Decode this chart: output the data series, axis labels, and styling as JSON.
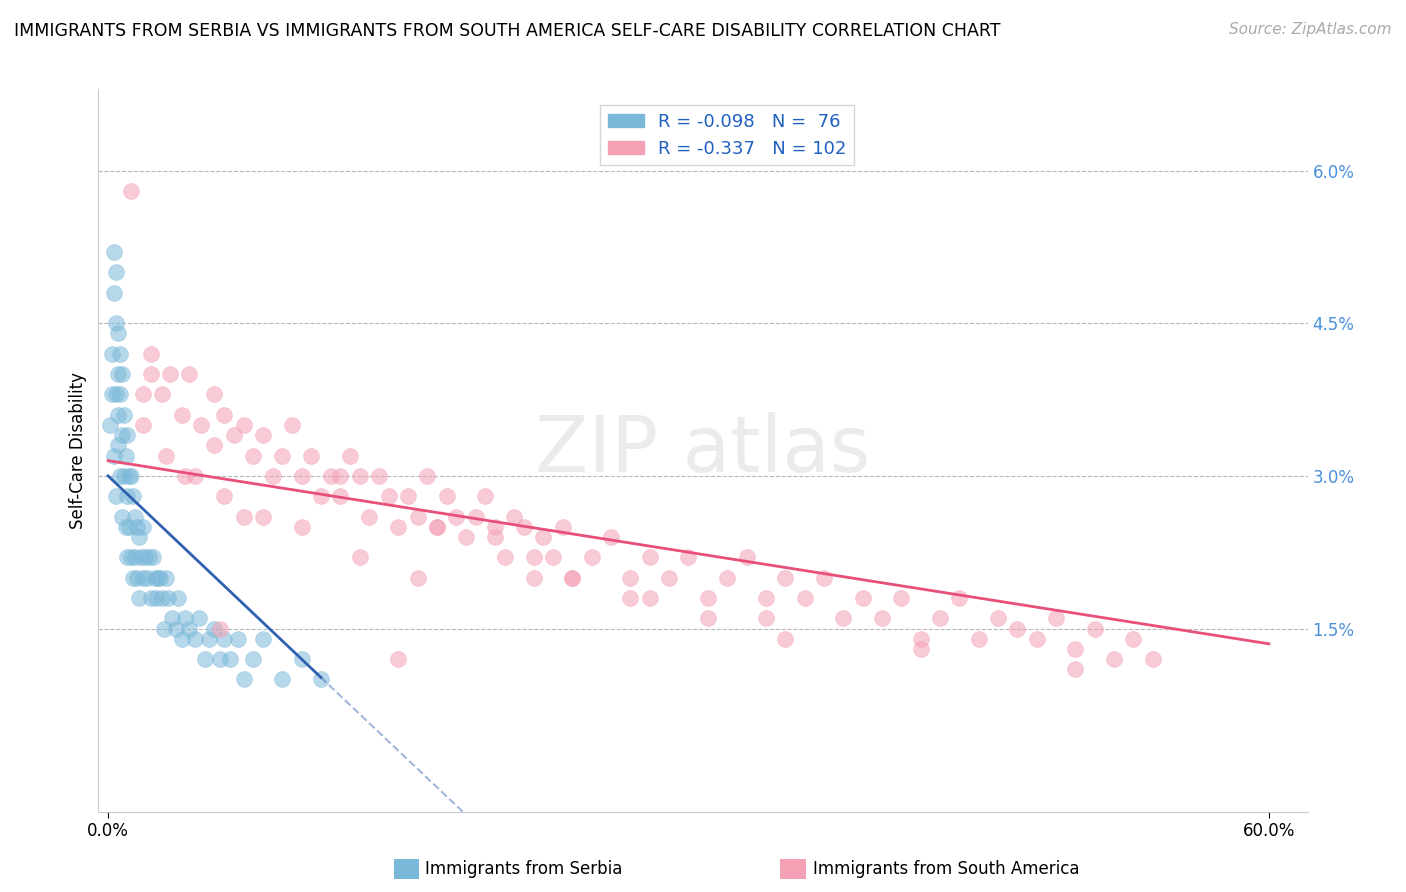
{
  "title": "IMMIGRANTS FROM SERBIA VS IMMIGRANTS FROM SOUTH AMERICA SELF-CARE DISABILITY CORRELATION CHART",
  "source": "Source: ZipAtlas.com",
  "ylabel": "Self-Care Disability",
  "blue_color": "#7ab8d9",
  "pink_color": "#f4a0b5",
  "blue_line_color": "#3060b0",
  "pink_line_color": "#e8507a",
  "serbia_R": -0.098,
  "serbia_N": 76,
  "sa_R": -0.337,
  "sa_N": 102,
  "serbia_x": [
    0.001,
    0.002,
    0.002,
    0.003,
    0.003,
    0.003,
    0.004,
    0.004,
    0.004,
    0.004,
    0.005,
    0.005,
    0.005,
    0.005,
    0.006,
    0.006,
    0.006,
    0.007,
    0.007,
    0.007,
    0.008,
    0.008,
    0.009,
    0.009,
    0.01,
    0.01,
    0.01,
    0.011,
    0.011,
    0.012,
    0.012,
    0.013,
    0.013,
    0.014,
    0.014,
    0.015,
    0.015,
    0.016,
    0.016,
    0.017,
    0.018,
    0.018,
    0.019,
    0.02,
    0.021,
    0.022,
    0.023,
    0.024,
    0.025,
    0.026,
    0.027,
    0.028,
    0.029,
    0.03,
    0.031,
    0.033,
    0.035,
    0.036,
    0.038,
    0.04,
    0.042,
    0.045,
    0.047,
    0.05,
    0.052,
    0.055,
    0.058,
    0.06,
    0.063,
    0.067,
    0.07,
    0.075,
    0.08,
    0.09,
    0.1,
    0.11
  ],
  "serbia_y": [
    0.035,
    0.042,
    0.038,
    0.048,
    0.052,
    0.032,
    0.045,
    0.038,
    0.05,
    0.028,
    0.04,
    0.033,
    0.044,
    0.036,
    0.042,
    0.03,
    0.038,
    0.034,
    0.04,
    0.026,
    0.03,
    0.036,
    0.025,
    0.032,
    0.028,
    0.034,
    0.022,
    0.03,
    0.025,
    0.03,
    0.022,
    0.028,
    0.02,
    0.026,
    0.022,
    0.025,
    0.02,
    0.024,
    0.018,
    0.022,
    0.025,
    0.02,
    0.022,
    0.02,
    0.022,
    0.018,
    0.022,
    0.02,
    0.018,
    0.02,
    0.02,
    0.018,
    0.015,
    0.02,
    0.018,
    0.016,
    0.015,
    0.018,
    0.014,
    0.016,
    0.015,
    0.014,
    0.016,
    0.012,
    0.014,
    0.015,
    0.012,
    0.014,
    0.012,
    0.014,
    0.01,
    0.012,
    0.014,
    0.01,
    0.012,
    0.01
  ],
  "sa_x": [
    0.012,
    0.018,
    0.022,
    0.028,
    0.032,
    0.038,
    0.042,
    0.048,
    0.055,
    0.06,
    0.065,
    0.07,
    0.075,
    0.08,
    0.085,
    0.09,
    0.095,
    0.1,
    0.105,
    0.11,
    0.115,
    0.12,
    0.125,
    0.13,
    0.135,
    0.14,
    0.145,
    0.15,
    0.155,
    0.16,
    0.165,
    0.17,
    0.175,
    0.18,
    0.185,
    0.19,
    0.195,
    0.2,
    0.205,
    0.21,
    0.215,
    0.22,
    0.225,
    0.23,
    0.235,
    0.24,
    0.25,
    0.26,
    0.27,
    0.28,
    0.29,
    0.3,
    0.31,
    0.32,
    0.33,
    0.34,
    0.35,
    0.36,
    0.37,
    0.38,
    0.39,
    0.4,
    0.41,
    0.42,
    0.43,
    0.44,
    0.45,
    0.46,
    0.47,
    0.48,
    0.49,
    0.5,
    0.51,
    0.52,
    0.53,
    0.54,
    0.018,
    0.03,
    0.045,
    0.06,
    0.08,
    0.1,
    0.13,
    0.16,
    0.04,
    0.07,
    0.2,
    0.24,
    0.28,
    0.31,
    0.35,
    0.022,
    0.055,
    0.12,
    0.17,
    0.22,
    0.27,
    0.34,
    0.42,
    0.5,
    0.058,
    0.15
  ],
  "sa_y": [
    0.058,
    0.035,
    0.042,
    0.038,
    0.04,
    0.036,
    0.04,
    0.035,
    0.038,
    0.036,
    0.034,
    0.035,
    0.032,
    0.034,
    0.03,
    0.032,
    0.035,
    0.03,
    0.032,
    0.028,
    0.03,
    0.028,
    0.032,
    0.03,
    0.026,
    0.03,
    0.028,
    0.025,
    0.028,
    0.026,
    0.03,
    0.025,
    0.028,
    0.026,
    0.024,
    0.026,
    0.028,
    0.025,
    0.022,
    0.026,
    0.025,
    0.022,
    0.024,
    0.022,
    0.025,
    0.02,
    0.022,
    0.024,
    0.02,
    0.022,
    0.02,
    0.022,
    0.018,
    0.02,
    0.022,
    0.018,
    0.02,
    0.018,
    0.02,
    0.016,
    0.018,
    0.016,
    0.018,
    0.014,
    0.016,
    0.018,
    0.014,
    0.016,
    0.015,
    0.014,
    0.016,
    0.013,
    0.015,
    0.012,
    0.014,
    0.012,
    0.038,
    0.032,
    0.03,
    0.028,
    0.026,
    0.025,
    0.022,
    0.02,
    0.03,
    0.026,
    0.024,
    0.02,
    0.018,
    0.016,
    0.014,
    0.04,
    0.033,
    0.03,
    0.025,
    0.02,
    0.018,
    0.016,
    0.013,
    0.011,
    0.015,
    0.012
  ],
  "xlim": [
    -0.005,
    0.62
  ],
  "ylim": [
    -0.003,
    0.068
  ],
  "yticks": [
    0.015,
    0.03,
    0.045,
    0.06
  ],
  "ytick_labels": [
    "1.5%",
    "3.0%",
    "4.5%",
    "6.0%"
  ],
  "xticks": [
    0.0,
    0.6
  ],
  "xtick_labels": [
    "0.0%",
    "60.0%"
  ],
  "blue_line_x_solid_end": 0.11,
  "blue_line_x_dash_end": 0.6,
  "serbia_line_intercept": 0.03,
  "serbia_line_slope": -0.18,
  "sa_line_intercept": 0.0315,
  "sa_line_slope": -0.03
}
